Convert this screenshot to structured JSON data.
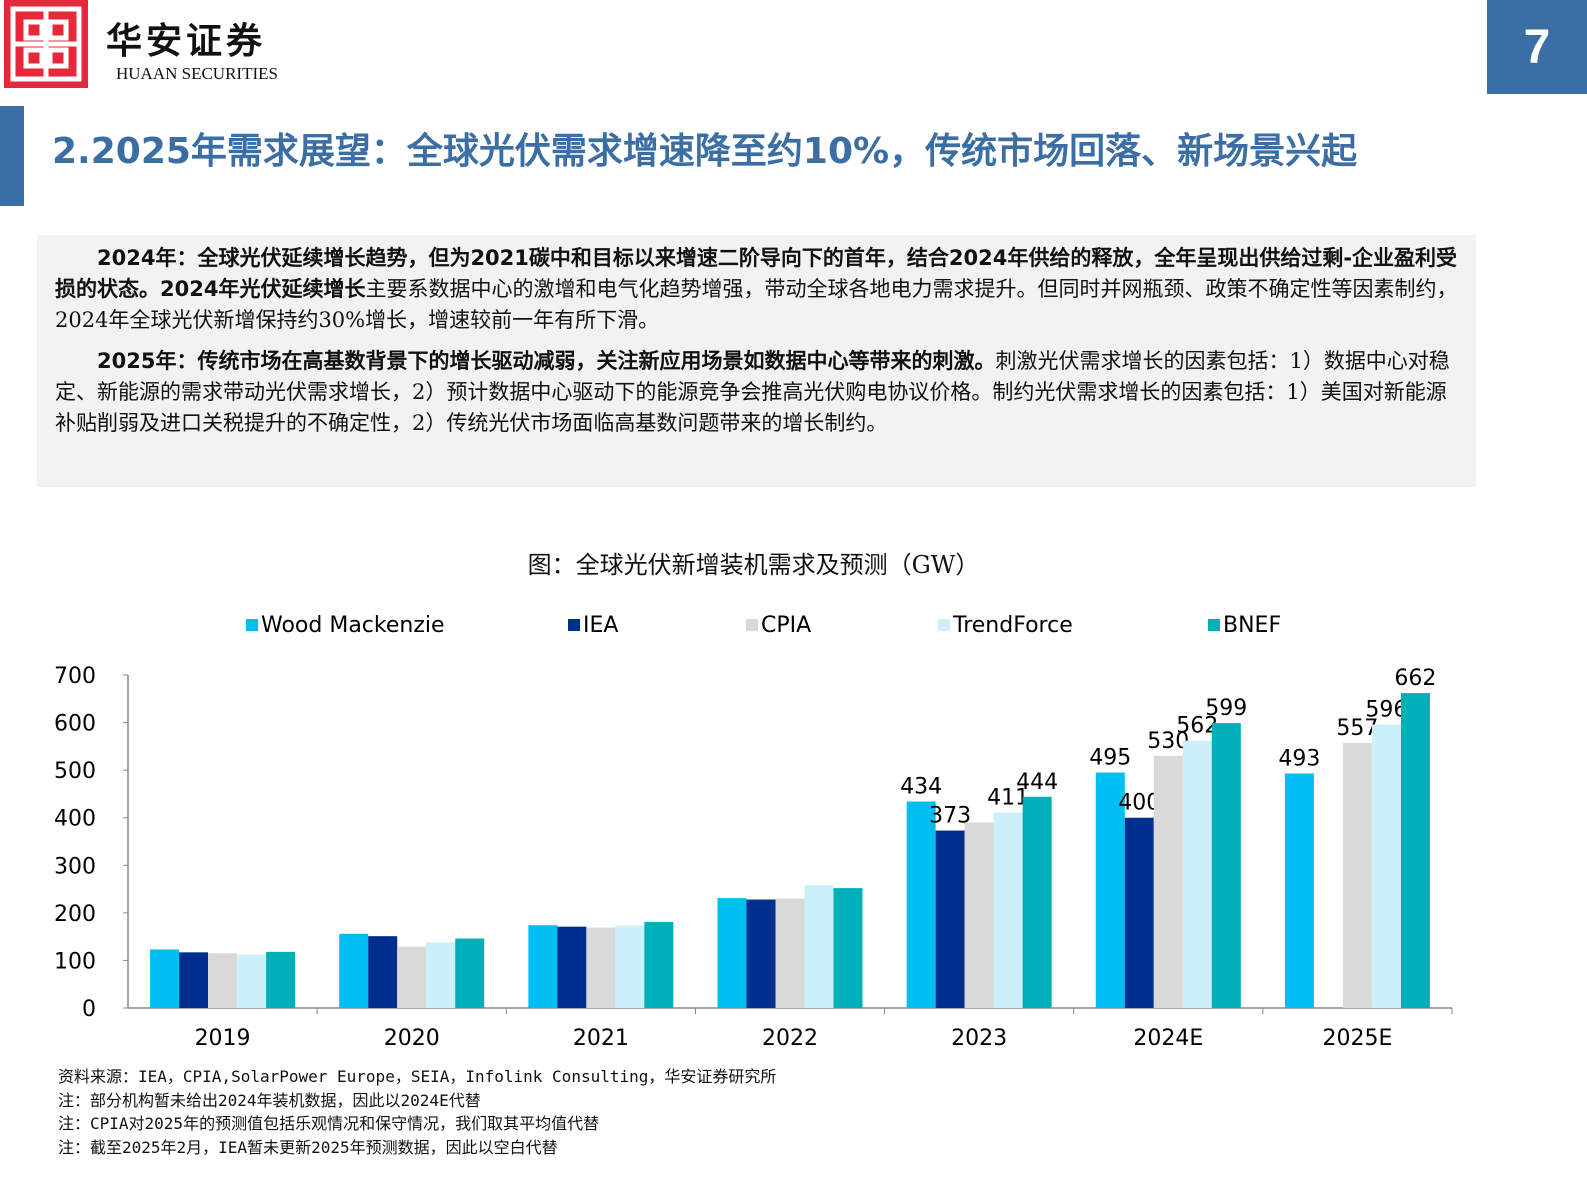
{
  "header": {
    "logo_cn": "华安证券",
    "logo_en": "HUAAN SECURITIES",
    "page_number": "7",
    "brand_color": "#e5283a",
    "accent_color": "#3b6ea5"
  },
  "title": "2.2025年需求展望：全球光伏需求增速降至约10%，传统市场回落、新场景兴起",
  "summary": {
    "p1_bold": "2024年：全球光伏延续增长趋势，但为2021碳中和目标以来增速二阶导向下的首年，结合2024年供给的释放，全年呈现出供给过剩-企业盈利受损的状态。2024年光伏延续增长",
    "p1_rest": "主要系数据中心的激增和电气化趋势增强，带动全球各地电力需求提升。但同时并网瓶颈、政策不确定性等因素制约，2024年全球光伏新增保持约30%增长，增速较前一年有所下滑。",
    "p2_bold": "2025年：传统市场在高基数背景下的增长驱动减弱，关注新应用场景如数据中心等带来的刺激。",
    "p2_rest": "刺激光伏需求增长的因素包括：1）数据中心对稳定、新能源的需求带动光伏需求增长，2）预计数据中心驱动下的能源竞争会推高光伏购电协议价格。制约光伏需求增长的因素包括：1）美国对新能源补贴削弱及进口关税提升的不确定性，2）传统光伏市场面临高基数问题带来的增长制约。"
  },
  "chart_data": {
    "type": "bar",
    "title": "图：全球光伏新增装机需求及预测（GW）",
    "categories": [
      "2019",
      "2020",
      "2021",
      "2022",
      "2023",
      "2024E",
      "2025E"
    ],
    "ylim": [
      0,
      700
    ],
    "yticks": [
      0,
      100,
      200,
      300,
      400,
      500,
      600,
      700
    ],
    "grid": false,
    "legend_position": "top",
    "series": [
      {
        "name": "Wood Mackenzie",
        "color": "#00bef2",
        "values": [
          123,
          156,
          174,
          231,
          434,
          495,
          493
        ],
        "labels": [
          null,
          null,
          null,
          null,
          "434",
          "495",
          "493"
        ]
      },
      {
        "name": "IEA",
        "color": "#002e8f",
        "values": [
          117,
          151,
          171,
          228,
          373,
          400,
          null
        ],
        "labels": [
          null,
          null,
          null,
          null,
          "373",
          "400",
          null
        ]
      },
      {
        "name": "CPIA",
        "color": "#d9d9d9",
        "values": [
          115,
          129,
          169,
          230,
          390,
          530,
          557
        ],
        "labels": [
          null,
          null,
          null,
          null,
          null,
          "530",
          "557"
        ]
      },
      {
        "name": "TrendForce",
        "color": "#ccf0fa",
        "values": [
          112,
          138,
          173,
          258,
          411,
          562,
          596
        ],
        "labels": [
          null,
          null,
          null,
          null,
          "411",
          "562",
          "596"
        ]
      },
      {
        "name": "BNEF",
        "color": "#00b0b9",
        "values": [
          118,
          146,
          181,
          252,
          444,
          599,
          662
        ],
        "labels": [
          null,
          null,
          null,
          null,
          "444",
          "599",
          "662"
        ]
      }
    ]
  },
  "notes": [
    "资料来源：IEA，CPIA,SolarPower Europe，SEIA，Infolink Consulting，华安证券研究所",
    "注：部分机构暂未给出2024年装机数据，因此以2024E代替",
    "注：CPIA对2025年的预测值包括乐观情况和保守情况，我们取其平均值代替",
    "注：截至2025年2月，IEA暂未更新2025年预测数据，因此以空白代替"
  ]
}
